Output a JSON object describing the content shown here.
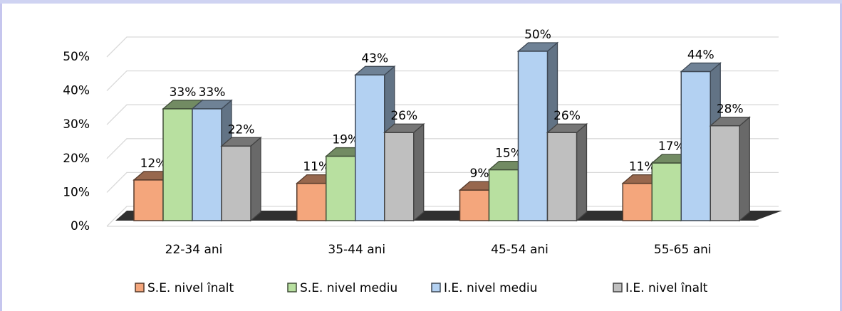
{
  "chart_data": {
    "type": "bar3d",
    "categories": [
      "22-34 ani",
      "35-44 ani",
      "45-54 ani",
      "55-65 ani"
    ],
    "series": [
      {
        "name": "S.E. nivel înalt",
        "color": "#f4a67c",
        "values": [
          12,
          11,
          9,
          11
        ],
        "value_labels": [
          "12%",
          "11%",
          "9%",
          "11%"
        ]
      },
      {
        "name": "S.E. nivel mediu",
        "color": "#b8e0a0",
        "values": [
          33,
          19,
          15,
          17
        ],
        "value_labels": [
          "33%",
          "19%",
          "15%",
          "17%"
        ]
      },
      {
        "name": "I.E. nivel mediu",
        "color": "#b3d1f2",
        "values": [
          33,
          43,
          50,
          44
        ],
        "value_labels": [
          "33%",
          "43%",
          "50%",
          "44%"
        ]
      },
      {
        "name": "I.E. nivel înalt",
        "color": "#bfbfbf",
        "values": [
          22,
          26,
          26,
          28
        ],
        "value_labels": [
          "22%",
          "26%",
          "26%",
          "28%"
        ]
      }
    ],
    "ylim": [
      0,
      50
    ],
    "yticks": [
      {
        "value": 0,
        "label": "0%"
      },
      {
        "value": 10,
        "label": "10%"
      },
      {
        "value": 20,
        "label": "20%"
      },
      {
        "value": 30,
        "label": "30%"
      },
      {
        "value": 40,
        "label": "40%"
      },
      {
        "value": 50,
        "label": "50%"
      }
    ],
    "grid": true,
    "legend": "bottom"
  }
}
